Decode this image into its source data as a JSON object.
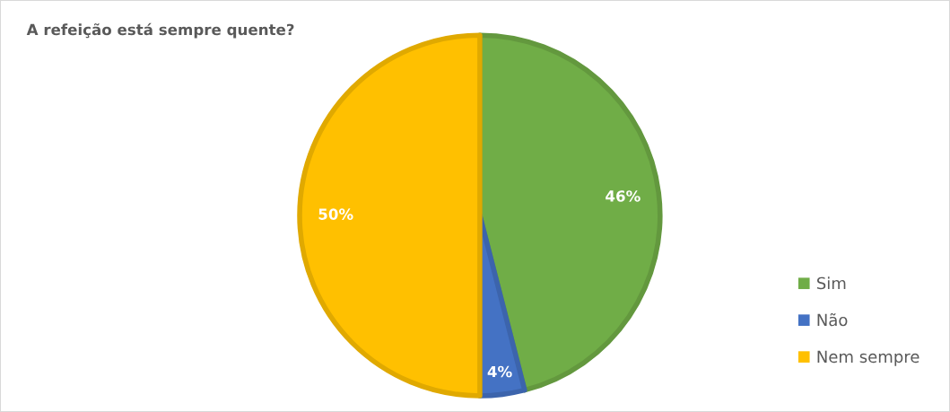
{
  "chart_data": {
    "type": "pie",
    "title": "A refeição está sempre quente?",
    "categories": [
      "Sim",
      "Não",
      "Nem sempre"
    ],
    "values": [
      46,
      4,
      50
    ],
    "colors": [
      "#70ad47",
      "#4472c4",
      "#ffc000"
    ],
    "value_labels": [
      "46%",
      "4%",
      "50%"
    ],
    "legend": "right"
  }
}
